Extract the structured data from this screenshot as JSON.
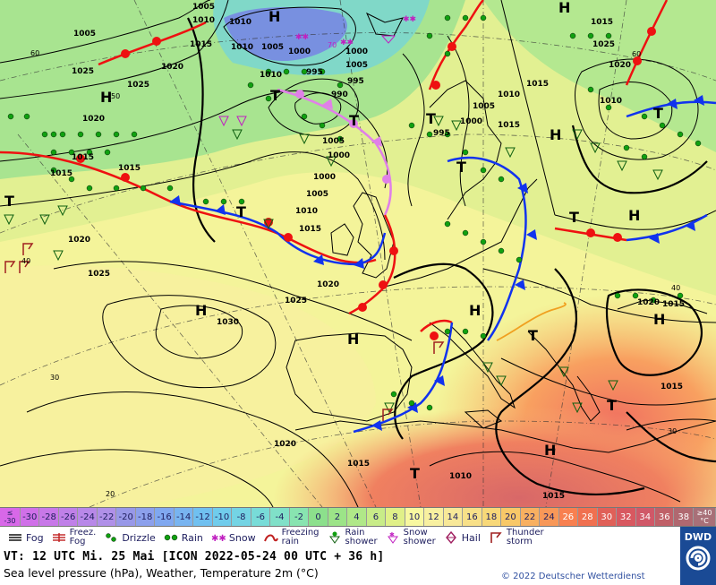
{
  "map": {
    "high_labels": [
      "H",
      "H",
      "H",
      "H",
      "H",
      "H",
      "H",
      "H",
      "H",
      "H"
    ],
    "low_labels": [
      "T",
      "T",
      "T",
      "T",
      "T",
      "T",
      "T",
      "T",
      "T",
      "T",
      "T"
    ],
    "isobar_labels": [
      "1005",
      "1010",
      "1015",
      "1005",
      "1020",
      "1025",
      "1030",
      "1025",
      "1020",
      "1015",
      "1010",
      "1005",
      "1000",
      "995",
      "990",
      "1000",
      "1005",
      "1010",
      "1015",
      "1020",
      "1025",
      "1000",
      "995",
      "1000",
      "1005",
      "1010",
      "1015",
      "1020",
      "1025",
      "1015",
      "1010",
      "1015",
      "1020",
      "1010",
      "1005",
      "1015",
      "1015",
      "1010",
      "1015",
      "995",
      "1000",
      "1005",
      "1010",
      "1015",
      "1020",
      "1025",
      "1015",
      "1020",
      "1015"
    ],
    "temp_labels": [
      "60",
      "50",
      "40",
      "30",
      "20",
      "60",
      "40",
      "30"
    ],
    "snow_label": "70"
  },
  "scale": {
    "first_top": "≤",
    "first_bottom": "-30",
    "values": [
      "-30",
      "-28",
      "-26",
      "-24",
      "-22",
      "-20",
      "-18",
      "-16",
      "-14",
      "-12",
      "-10",
      "-8",
      "-6",
      "-4",
      "-2",
      "0",
      "2",
      "4",
      "6",
      "8",
      "10",
      "12",
      "14",
      "16",
      "18",
      "20",
      "22",
      "24",
      "26",
      "28",
      "30",
      "32",
      "34",
      "36",
      "38"
    ],
    "colors": [
      "#d070e8",
      "#c878e8",
      "#c080e8",
      "#b888e8",
      "#b090e8",
      "#9898e8",
      "#8ca0ec",
      "#80a8f0",
      "#78b4f0",
      "#70c0f0",
      "#70ccec",
      "#74d4e4",
      "#78dcd8",
      "#80e0c8",
      "#88e4b0",
      "#8ce08c",
      "#9ce488",
      "#b0e888",
      "#c8ec88",
      "#e0f088",
      "#f8f8a0",
      "#f8f0a0",
      "#f8e898",
      "#f8e088",
      "#f8d878",
      "#f8c868",
      "#f8b060",
      "#f89858",
      "#f88050",
      "#f07050",
      "#e06058",
      "#d85860",
      "#d05868",
      "#c06068",
      "#b06870"
    ],
    "last_top": "≥40",
    "last_bottom": "°C"
  },
  "legend": {
    "fog": "Fog",
    "freez_fog_1": "Freez.",
    "freez_fog_2": "Fog",
    "drizzle": "Drizzle",
    "rain": "Rain",
    "snow": "Snow",
    "freezing_rain_1": "Freezing",
    "freezing_rain_2": "rain",
    "rain_shower_1": "Rain",
    "rain_shower_2": "shower",
    "snow_shower_1": "Snow",
    "snow_shower_2": "shower",
    "hail": "Hail",
    "thunderstorm_1": "Thunder",
    "thunderstorm_2": "storm"
  },
  "info": {
    "valid_time": "VT: 12 UTC Mi.  25 Mai [ICON 2022-05-24  00 UTC + 36 h]",
    "parameter": "Sea level pressure (hPa), Weather, Temperature 2m (°C)",
    "copyright": "© 2022 Deutscher Wetterdienst",
    "logo": "DWD"
  },
  "colors": {
    "warm_front": "#ee1111",
    "cold_front": "#1133ee",
    "occluded_front": "#e080e8",
    "isobar": "#000000"
  }
}
